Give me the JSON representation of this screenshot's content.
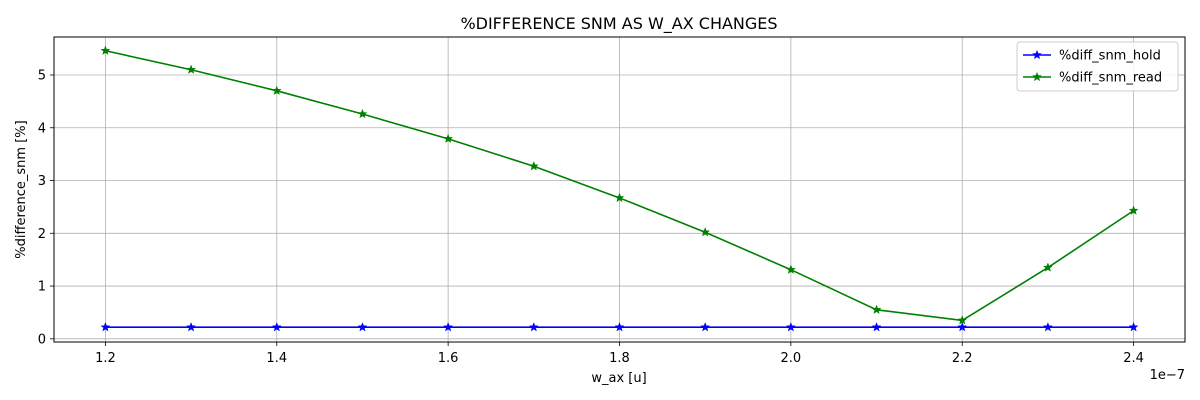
{
  "chart_data": {
    "type": "line",
    "title": "%DIFFERENCE SNM AS W_AX CHANGES",
    "xlabel": "w_ax [u]",
    "ylabel": "%difference_snm [%]",
    "x_offset_label": "1e−7",
    "x": [
      1.2e-07,
      1.3e-07,
      1.4e-07,
      1.5e-07,
      1.6e-07,
      1.7e-07,
      1.8e-07,
      1.9e-07,
      2e-07,
      2.1e-07,
      2.2e-07,
      2.3e-07,
      2.4e-07
    ],
    "xlim": [
      1.14e-07,
      2.46e-07
    ],
    "ylim": [
      -0.06,
      5.72
    ],
    "xticks": [
      1.2e-07,
      1.4e-07,
      1.6e-07,
      1.8e-07,
      2e-07,
      2.2e-07,
      2.4e-07
    ],
    "xtick_labels": [
      "1.2",
      "1.4",
      "1.6",
      "1.8",
      "2.0",
      "2.2",
      "2.4"
    ],
    "yticks": [
      0,
      1,
      2,
      3,
      4,
      5
    ],
    "ytick_labels": [
      "0",
      "1",
      "2",
      "3",
      "4",
      "5"
    ],
    "grid": true,
    "legend_position": "top-right",
    "series": [
      {
        "name": "%diff_snm_hold",
        "color": "#0000ff",
        "marker": "star",
        "values": [
          0.22,
          0.22,
          0.22,
          0.22,
          0.22,
          0.22,
          0.22,
          0.22,
          0.22,
          0.22,
          0.22,
          0.22,
          0.22
        ]
      },
      {
        "name": "%diff_snm_read",
        "color": "#008000",
        "marker": "star",
        "values": [
          5.46,
          5.1,
          4.7,
          4.26,
          3.79,
          3.27,
          2.67,
          2.02,
          1.31,
          0.55,
          0.35,
          1.35,
          2.43
        ]
      }
    ]
  }
}
